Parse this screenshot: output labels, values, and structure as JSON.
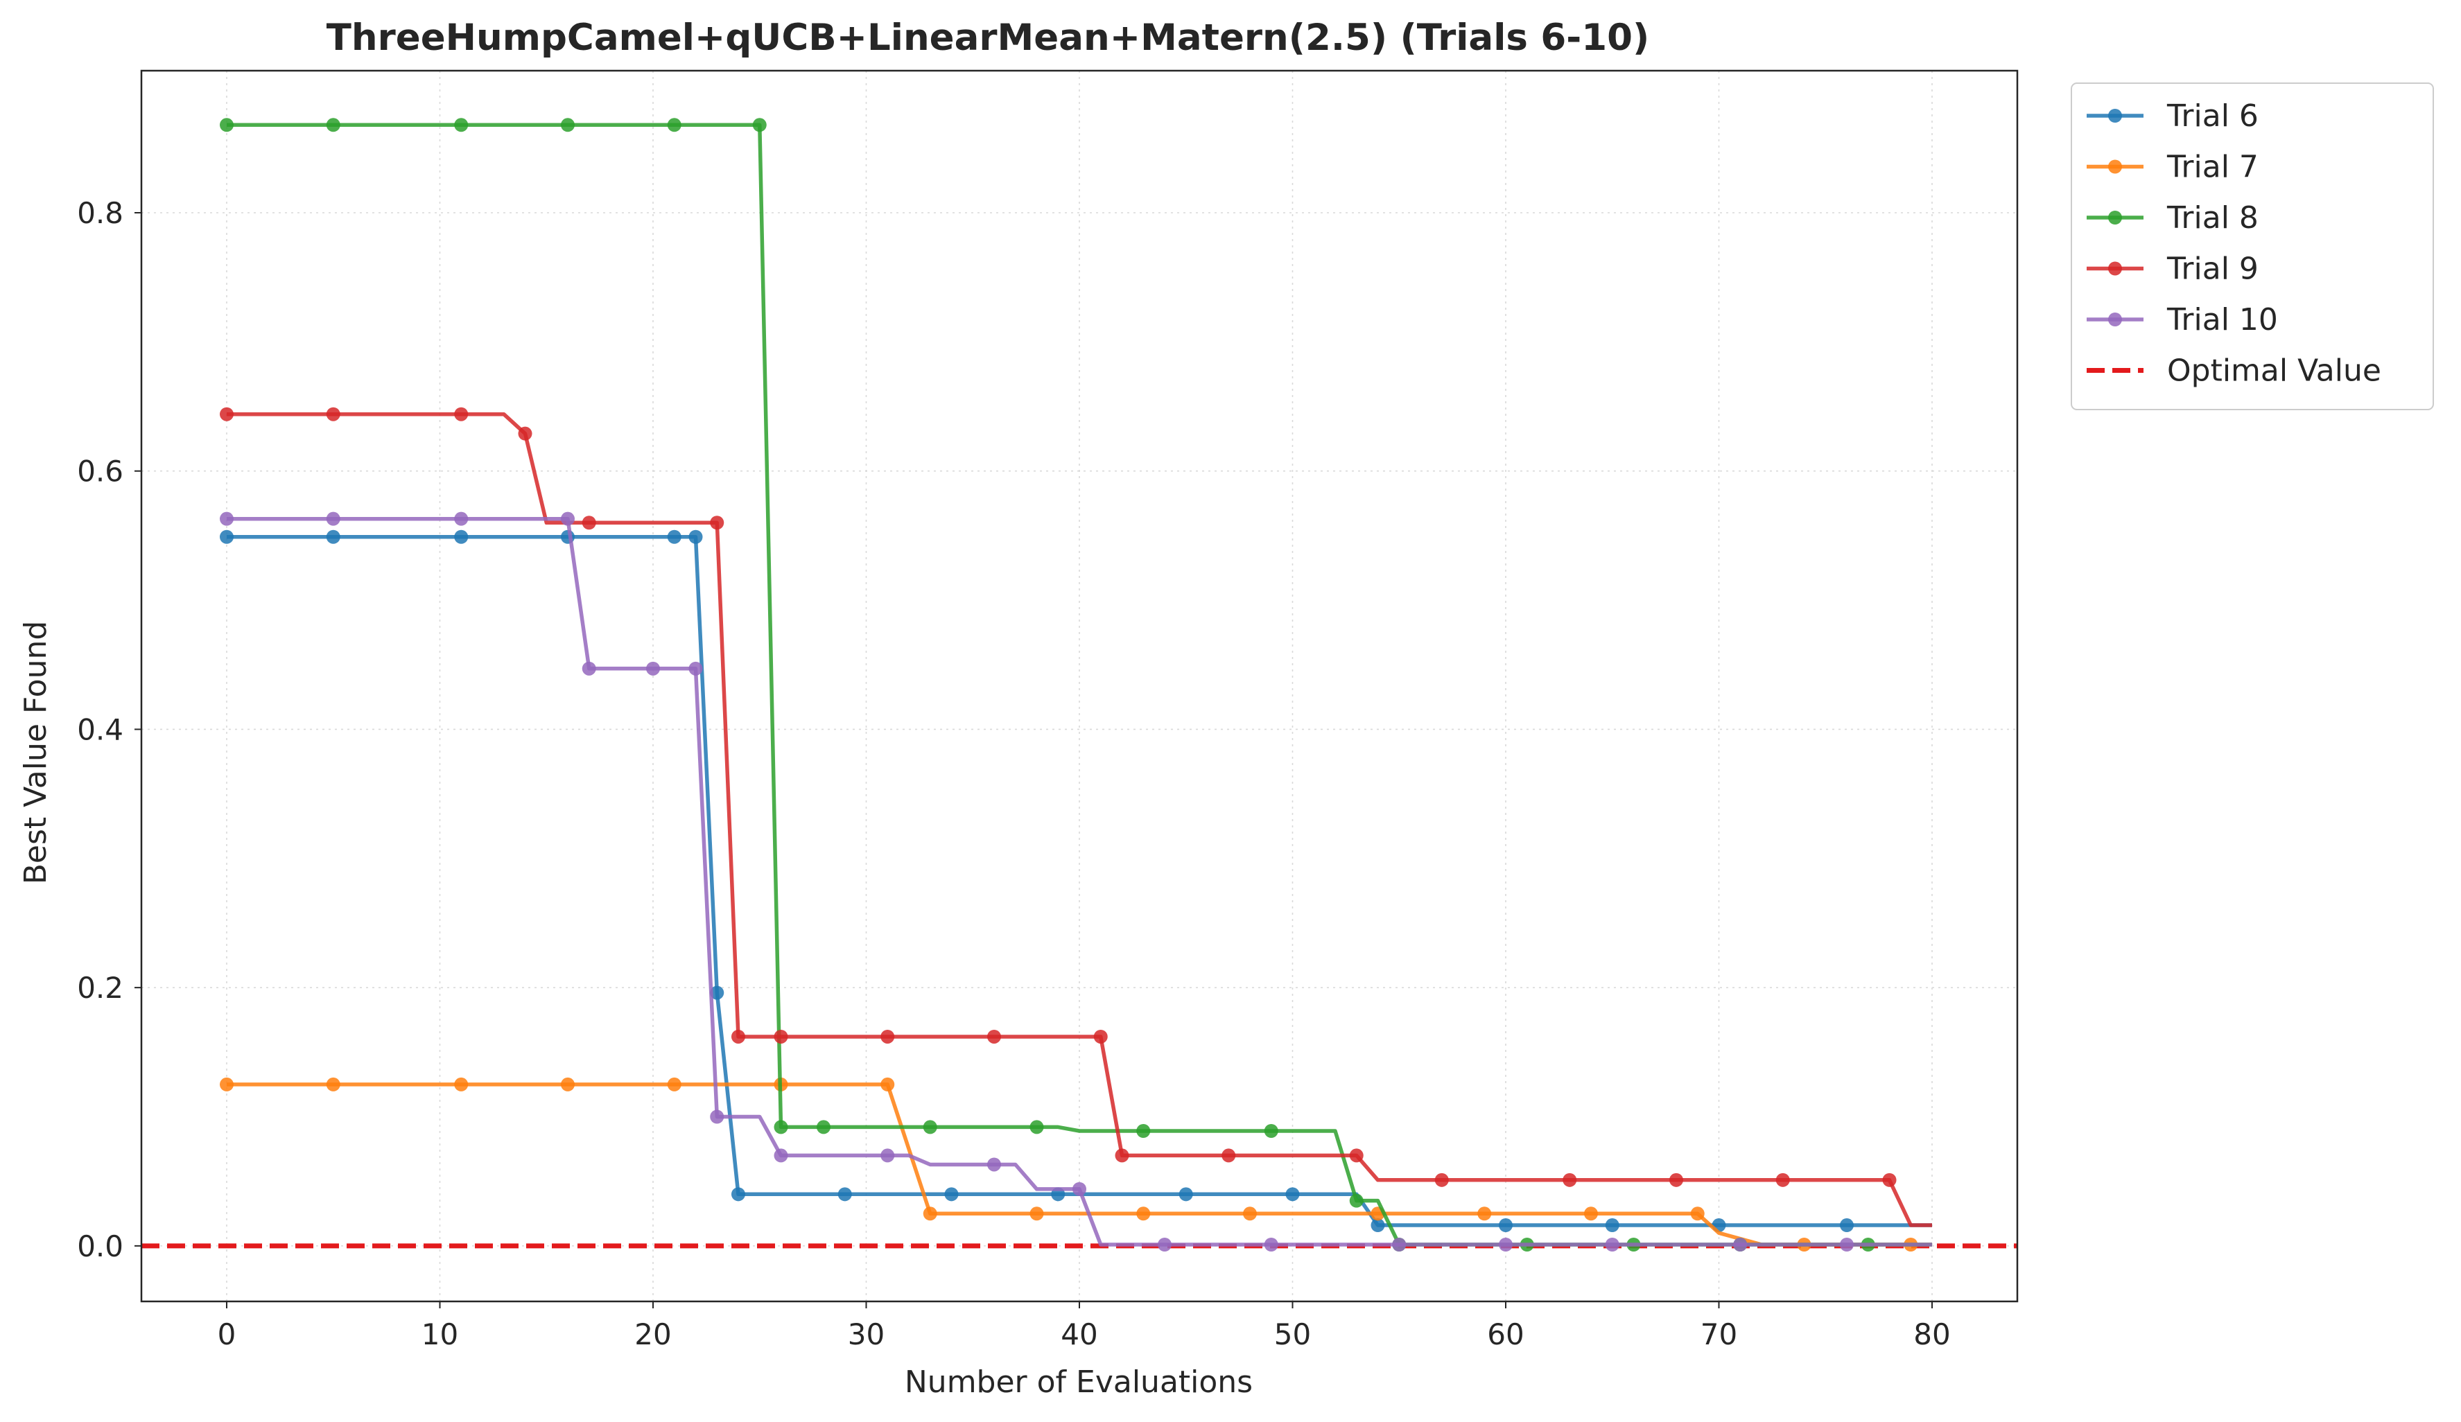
{
  "chart_data": {
    "type": "line",
    "title": "ThreeHumpCamel+qUCB+LinearMean+Matern(2.5) (Trials 6-10)",
    "xlabel": "Number of Evaluations",
    "ylabel": "Best Value Found",
    "xlim": [
      -4,
      84
    ],
    "ylim": [
      -0.043,
      0.91
    ],
    "xticks": [
      0,
      10,
      20,
      30,
      40,
      50,
      60,
      70,
      80
    ],
    "xtick_labels": [
      "0",
      "10",
      "20",
      "30",
      "40",
      "50",
      "60",
      "70",
      "80"
    ],
    "yticks": [
      0.0,
      0.2,
      0.4,
      0.6,
      0.8
    ],
    "ytick_labels": [
      "0.0",
      "0.2",
      "0.4",
      "0.6",
      "0.8"
    ],
    "grid": true,
    "legend_position": "outside-right-top",
    "optimal_value": 0.0,
    "optimal_label": "Optimal Value",
    "optimal_color": "#e31a1c",
    "series": [
      {
        "name": "Trial 6",
        "color": "#1f77b4",
        "line": [
          [
            0,
            0.549
          ],
          [
            22,
            0.549
          ],
          [
            23,
            0.196
          ],
          [
            24,
            0.04
          ],
          [
            53,
            0.04
          ],
          [
            54,
            0.016
          ],
          [
            80,
            0.016
          ]
        ],
        "markers": [
          [
            0,
            0.549
          ],
          [
            5,
            0.549
          ],
          [
            11,
            0.549
          ],
          [
            16,
            0.549
          ],
          [
            21,
            0.549
          ],
          [
            22,
            0.549
          ],
          [
            23,
            0.196
          ],
          [
            24,
            0.04
          ],
          [
            29,
            0.04
          ],
          [
            34,
            0.04
          ],
          [
            39,
            0.04
          ],
          [
            45,
            0.04
          ],
          [
            50,
            0.04
          ],
          [
            54,
            0.016
          ],
          [
            60,
            0.016
          ],
          [
            65,
            0.016
          ],
          [
            70,
            0.016
          ],
          [
            76,
            0.016
          ]
        ]
      },
      {
        "name": "Trial 7",
        "color": "#ff7f0e",
        "line": [
          [
            0,
            0.125
          ],
          [
            31,
            0.125
          ],
          [
            33,
            0.025
          ],
          [
            69,
            0.025
          ],
          [
            70,
            0.01
          ],
          [
            72,
            0.001
          ],
          [
            80,
            0.001
          ]
        ],
        "markers": [
          [
            0,
            0.125
          ],
          [
            5,
            0.125
          ],
          [
            11,
            0.125
          ],
          [
            16,
            0.125
          ],
          [
            21,
            0.125
          ],
          [
            26,
            0.125
          ],
          [
            31,
            0.125
          ],
          [
            33,
            0.025
          ],
          [
            38,
            0.025
          ],
          [
            43,
            0.025
          ],
          [
            48,
            0.025
          ],
          [
            54,
            0.025
          ],
          [
            59,
            0.025
          ],
          [
            64,
            0.025
          ],
          [
            69,
            0.025
          ],
          [
            74,
            0.001
          ],
          [
            79,
            0.001
          ]
        ]
      },
      {
        "name": "Trial 8",
        "color": "#2ca02c",
        "line": [
          [
            0,
            0.868
          ],
          [
            25,
            0.868
          ],
          [
            26,
            0.092
          ],
          [
            39,
            0.092
          ],
          [
            40,
            0.089
          ],
          [
            52,
            0.089
          ],
          [
            53,
            0.035
          ],
          [
            54,
            0.035
          ],
          [
            55,
            0.001
          ],
          [
            80,
            0.001
          ]
        ],
        "markers": [
          [
            0,
            0.868
          ],
          [
            5,
            0.868
          ],
          [
            11,
            0.868
          ],
          [
            16,
            0.868
          ],
          [
            21,
            0.868
          ],
          [
            25,
            0.868
          ],
          [
            26,
            0.092
          ],
          [
            28,
            0.092
          ],
          [
            33,
            0.092
          ],
          [
            38,
            0.092
          ],
          [
            43,
            0.089
          ],
          [
            49,
            0.089
          ],
          [
            53,
            0.035
          ],
          [
            55,
            0.001
          ],
          [
            61,
            0.001
          ],
          [
            66,
            0.001
          ],
          [
            71,
            0.001
          ],
          [
            77,
            0.001
          ]
        ]
      },
      {
        "name": "Trial 9",
        "color": "#d62728",
        "line": [
          [
            0,
            0.644
          ],
          [
            13,
            0.644
          ],
          [
            14,
            0.629
          ],
          [
            15,
            0.56
          ],
          [
            23,
            0.56
          ],
          [
            24,
            0.162
          ],
          [
            41,
            0.162
          ],
          [
            42,
            0.07
          ],
          [
            53,
            0.07
          ],
          [
            54,
            0.051
          ],
          [
            78,
            0.051
          ],
          [
            79,
            0.016
          ],
          [
            80,
            0.016
          ]
        ],
        "markers": [
          [
            0,
            0.644
          ],
          [
            5,
            0.644
          ],
          [
            11,
            0.644
          ],
          [
            14,
            0.629
          ],
          [
            17,
            0.56
          ],
          [
            23,
            0.56
          ],
          [
            24,
            0.162
          ],
          [
            26,
            0.162
          ],
          [
            31,
            0.162
          ],
          [
            36,
            0.162
          ],
          [
            41,
            0.162
          ],
          [
            42,
            0.07
          ],
          [
            47,
            0.07
          ],
          [
            53,
            0.07
          ],
          [
            57,
            0.051
          ],
          [
            63,
            0.051
          ],
          [
            68,
            0.051
          ],
          [
            73,
            0.051
          ],
          [
            78,
            0.051
          ]
        ]
      },
      {
        "name": "Trial 10",
        "color": "#9467bd",
        "line": [
          [
            0,
            0.563
          ],
          [
            16,
            0.563
          ],
          [
            17,
            0.447
          ],
          [
            22,
            0.447
          ],
          [
            23,
            0.1
          ],
          [
            25,
            0.1
          ],
          [
            26,
            0.07
          ],
          [
            32,
            0.07
          ],
          [
            33,
            0.063
          ],
          [
            37,
            0.063
          ],
          [
            38,
            0.044
          ],
          [
            40,
            0.044
          ],
          [
            41,
            0.001
          ],
          [
            80,
            0.001
          ]
        ],
        "markers": [
          [
            0,
            0.563
          ],
          [
            5,
            0.563
          ],
          [
            11,
            0.563
          ],
          [
            16,
            0.563
          ],
          [
            17,
            0.447
          ],
          [
            20,
            0.447
          ],
          [
            22,
            0.447
          ],
          [
            23,
            0.1
          ],
          [
            26,
            0.07
          ],
          [
            31,
            0.07
          ],
          [
            36,
            0.063
          ],
          [
            40,
            0.044
          ],
          [
            44,
            0.001
          ],
          [
            49,
            0.001
          ],
          [
            55,
            0.001
          ],
          [
            60,
            0.001
          ],
          [
            65,
            0.001
          ],
          [
            71,
            0.001
          ],
          [
            76,
            0.001
          ]
        ]
      }
    ]
  }
}
